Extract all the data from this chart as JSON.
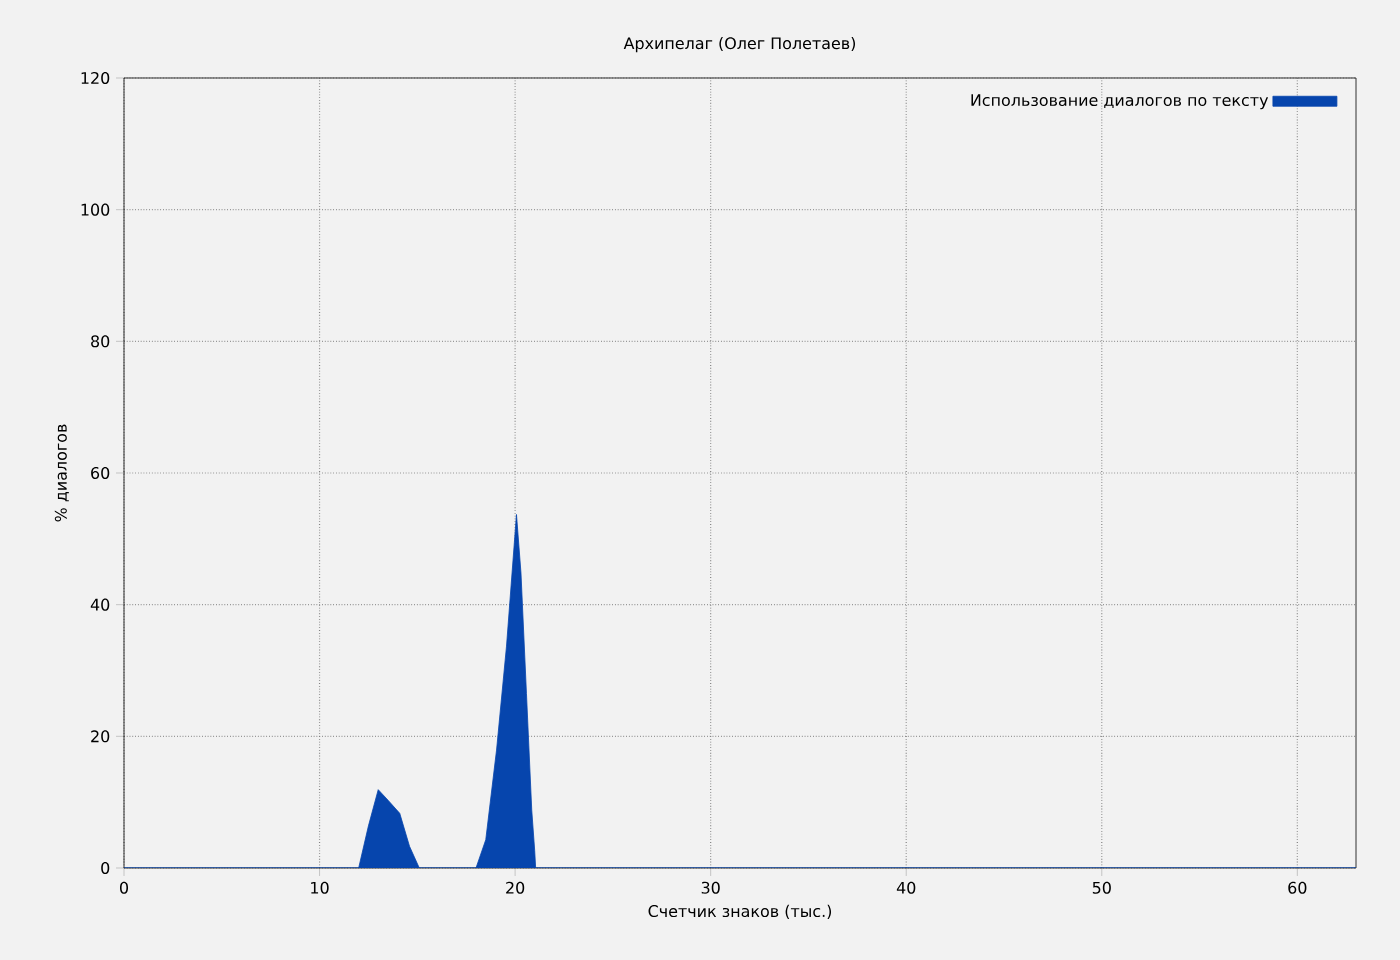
{
  "chart_data": {
    "type": "area",
    "title": "Архипелаг (Олег Полетаев)",
    "xlabel": "Счетчик знаков (тыс.)",
    "ylabel": "% диалогов",
    "xlim": [
      0,
      63
    ],
    "ylim": [
      0,
      120
    ],
    "xticks": [
      0,
      10,
      20,
      30,
      40,
      50,
      60
    ],
    "yticks": [
      0,
      20,
      40,
      60,
      80,
      100,
      120
    ],
    "grid": true,
    "legend": "top right",
    "series": [
      {
        "name": "Использование диалогов по тексту",
        "color": "#0645ad",
        "x": [
          0,
          12,
          12.5,
          13,
          13.5,
          14.1,
          14.6,
          15.1,
          18,
          18.5,
          19.05,
          19.56,
          20.07,
          20.3,
          20.58,
          20.85,
          21,
          21.05,
          63
        ],
        "values": [
          0,
          0,
          6.4,
          11.9,
          10.3,
          8.3,
          3.3,
          0,
          0,
          4.3,
          17.9,
          33.7,
          53.7,
          44.8,
          26.5,
          8.8,
          2.7,
          0,
          0
        ]
      }
    ]
  }
}
